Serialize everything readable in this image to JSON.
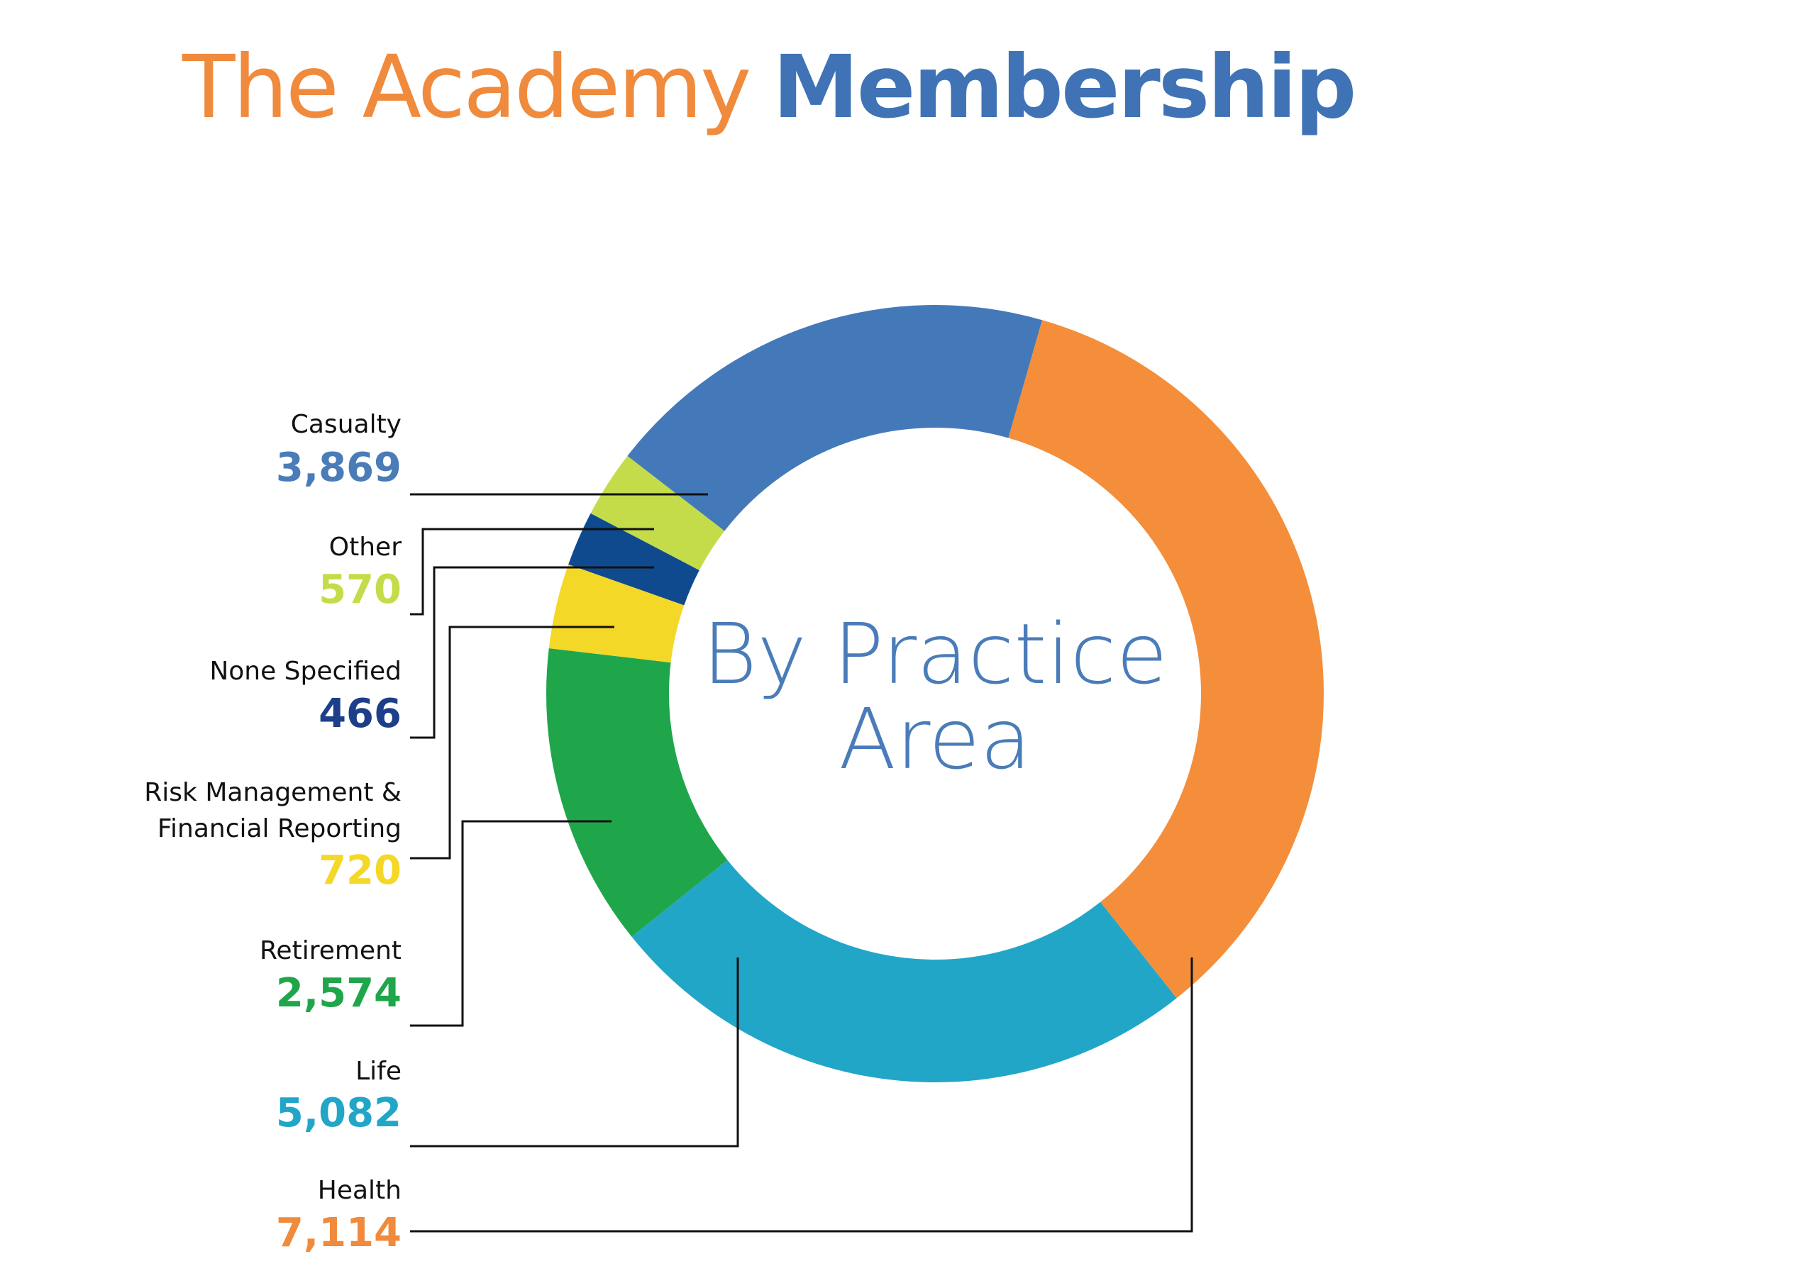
{
  "title": {
    "part1": "The Academy",
    "part2": "Membership",
    "part1_color": "#f08a3c",
    "part2_color": "#3f73b5"
  },
  "center_label": {
    "line1": "By Practice",
    "line2": "Area"
  },
  "chart_data": {
    "type": "pie",
    "subtype": "donut",
    "title": "By Practice Area",
    "slices": [
      {
        "label": "Health",
        "value": 7114,
        "value_text": "7,114",
        "color": "#f48e3b"
      },
      {
        "label": "Life",
        "value": 5082,
        "value_text": "5,082",
        "color": "#22a6c8"
      },
      {
        "label": "Retirement",
        "value": 2574,
        "value_text": "2,574",
        "color": "#1fa64b"
      },
      {
        "label": "Risk Management & Financial Reporting",
        "label_lines": [
          "Risk Management &",
          "Financial Reporting"
        ],
        "value": 720,
        "value_text": "720",
        "color": "#f4d828"
      },
      {
        "label": "None Specified",
        "value": 466,
        "value_text": "466",
        "color": "#0f4a8f"
      },
      {
        "label": "Other",
        "value": 570,
        "value_text": "570",
        "color": "#c4dc49"
      },
      {
        "label": "Casualty",
        "value": 3869,
        "value_text": "3,869",
        "color": "#4479b9"
      }
    ],
    "value_colors": {
      "Casualty": "#4a7cb8",
      "Other": "#c4dc49",
      "None Specified": "#1d3f8a",
      "Risk Management & Financial Reporting": "#f4d828",
      "Retirement": "#1fa64b",
      "Life": "#22a6c8",
      "Health": "#f08a3c"
    }
  }
}
